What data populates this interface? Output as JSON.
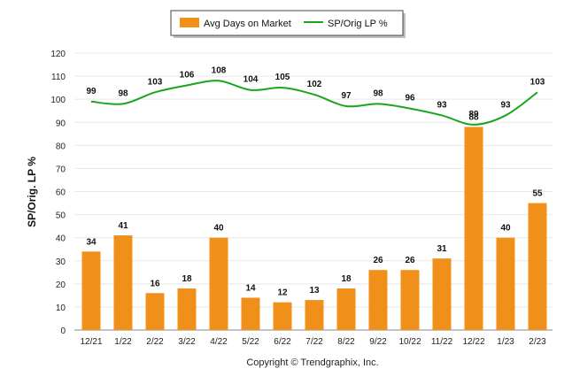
{
  "chart_data": {
    "type": "bar",
    "categories": [
      "12/21",
      "1/22",
      "2/22",
      "3/22",
      "4/22",
      "5/22",
      "6/22",
      "7/22",
      "8/22",
      "9/22",
      "10/22",
      "11/22",
      "12/22",
      "1/23",
      "2/23"
    ],
    "series": [
      {
        "name": "Avg Days on Market",
        "type": "bar",
        "color": "#f0901a",
        "values": [
          34,
          41,
          16,
          18,
          40,
          14,
          12,
          13,
          18,
          26,
          26,
          31,
          88,
          40,
          55
        ]
      },
      {
        "name": "SP/Orig LP %",
        "type": "line",
        "color": "#1aa51a",
        "values": [
          99,
          98,
          103,
          106,
          108,
          104,
          105,
          102,
          97,
          98,
          96,
          93,
          89,
          93,
          103
        ]
      }
    ],
    "ylabel": "SP/Orig. LP %",
    "ylim": [
      0,
      120
    ],
    "yticks": [
      0,
      10,
      20,
      30,
      40,
      50,
      60,
      70,
      80,
      90,
      100,
      110,
      120
    ],
    "grid": true,
    "legend_position": "top-center"
  },
  "footer": "Copyright © Trendgraphix, Inc."
}
